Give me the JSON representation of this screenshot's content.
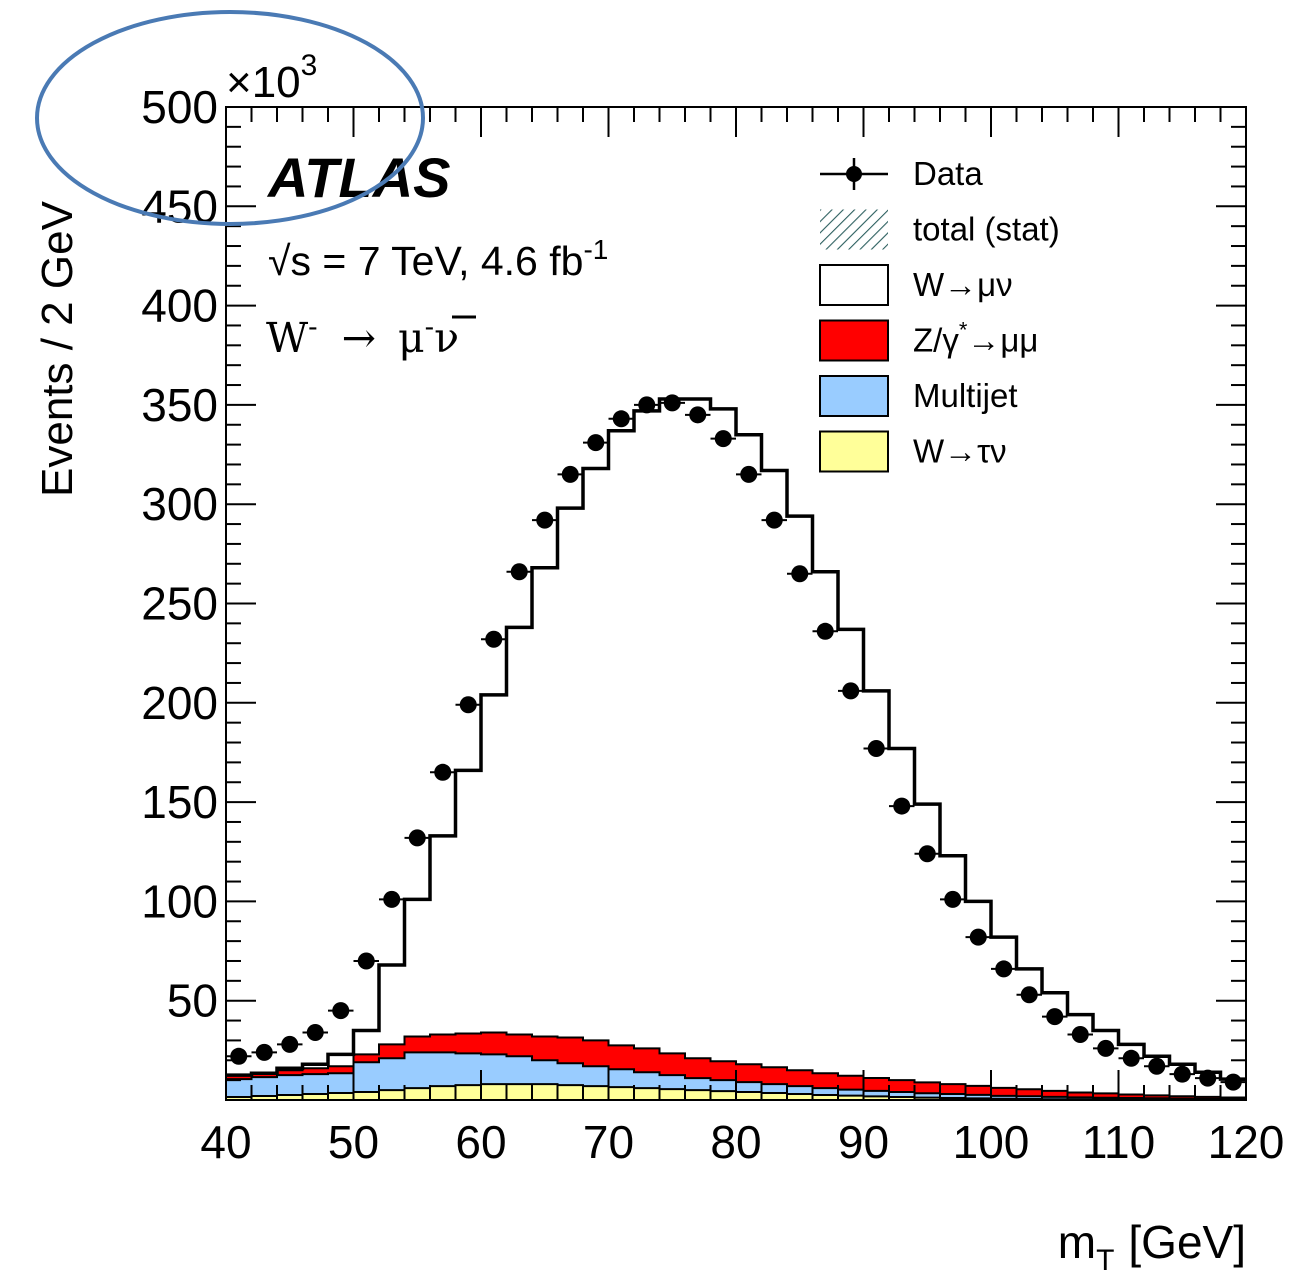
{
  "chart_data": {
    "type": "bar",
    "experiment": "ATLAS",
    "energy_label": "√s = 7 TeV, 4.6 fb",
    "energy_sup": "-1",
    "channel": {
      "boson": "W",
      "boson_charge": "-",
      "arrow": "→",
      "lepton": "μ",
      "lepton_charge": "-",
      "neutrino": "ν"
    },
    "xlabel": {
      "main": "m",
      "sub": "T",
      "unit": "[GeV]"
    },
    "ylabel": "Events / 2 GeV",
    "y_multiplier": {
      "base": "×10",
      "exp": "3"
    },
    "xlim": [
      40,
      120
    ],
    "ylim": [
      0,
      500
    ],
    "x_ticks": [
      40,
      50,
      60,
      70,
      80,
      90,
      100,
      110,
      120
    ],
    "y_ticks": [
      50,
      100,
      150,
      200,
      250,
      300,
      350,
      400,
      450,
      500
    ],
    "bin_width": 2,
    "bin_edges_start": 40,
    "legend_position": "top-right",
    "legend": [
      {
        "label_parts": [
          "Data"
        ],
        "kind": "marker"
      },
      {
        "label_parts": [
          "total (stat)"
        ],
        "kind": "hatch"
      },
      {
        "label_parts": [
          "W→μν"
        ],
        "kind": "box",
        "color": "#ffffff"
      },
      {
        "label_parts": [
          "Z/γ",
          "*",
          "→μμ"
        ],
        "kind": "box",
        "color": "#ff0000"
      },
      {
        "label_parts": [
          "Multijet"
        ],
        "kind": "box",
        "color": "#99ccff"
      },
      {
        "label_parts": [
          "W→τν"
        ],
        "kind": "box",
        "color": "#ffff99"
      }
    ],
    "series": [
      {
        "name": "W→τν",
        "color": "#ffff99",
        "values": [
          1.5,
          2,
          2.5,
          3,
          3.5,
          4,
          5,
          6,
          7,
          7.5,
          8,
          8,
          8,
          7.5,
          7,
          6.5,
          6,
          5.5,
          5,
          4.5,
          4,
          3.5,
          3,
          2.5,
          2.2,
          1.8,
          1.5,
          1.2,
          1,
          0.8,
          0.6,
          0.5,
          0.4,
          0.3,
          0.25,
          0.2,
          0.15,
          0.1,
          0.08,
          0.05
        ]
      },
      {
        "name": "Multijet",
        "color": "#99ccff",
        "values": [
          9,
          9.5,
          10,
          10,
          10,
          15,
          16,
          18,
          17,
          16,
          15,
          14,
          12,
          11,
          10,
          9,
          8,
          7,
          6,
          5.5,
          5,
          4.5,
          4,
          3.5,
          3,
          2.8,
          2.5,
          2.2,
          2,
          1.8,
          1.5,
          1.4,
          1.2,
          1,
          0.9,
          0.8,
          0.7,
          0.6,
          0.5,
          0.4
        ]
      },
      {
        "name": "Z/γ*→μμ",
        "color": "#ff0000",
        "values": [
          2,
          2,
          2.5,
          3,
          3.5,
          4,
          7,
          8,
          9,
          10,
          11,
          11,
          12,
          13,
          13,
          12,
          12,
          11,
          10,
          9.5,
          9,
          8.5,
          8,
          7.5,
          7,
          6.5,
          6,
          5.5,
          5,
          4.5,
          4,
          3.5,
          3,
          2.5,
          2.2,
          1.8,
          1.5,
          1.2,
          1,
          0.8
        ]
      },
      {
        "name": "W→μν",
        "total": true,
        "values": [
          12.5,
          13.5,
          16,
          18,
          23,
          35,
          68,
          101,
          133,
          166,
          204,
          238,
          268,
          298,
          318,
          337,
          347,
          353,
          353,
          348,
          335,
          317,
          294,
          266,
          237,
          206,
          177,
          149,
          123,
          100,
          82,
          66,
          54,
          43,
          35,
          28,
          22,
          18,
          14,
          10.5
        ]
      }
    ],
    "data_points": {
      "name": "Data",
      "x": [
        41,
        43,
        45,
        47,
        49,
        51,
        53,
        55,
        57,
        59,
        61,
        63,
        65,
        67,
        69,
        71,
        73,
        75,
        77,
        79,
        81,
        83,
        85,
        87,
        89,
        91,
        93,
        95,
        97,
        99,
        101,
        103,
        105,
        107,
        109,
        111,
        113,
        115,
        117,
        119
      ],
      "y": [
        22,
        24,
        28,
        34,
        45,
        70,
        101,
        132,
        165,
        199,
        232,
        266,
        292,
        315,
        331,
        343,
        350,
        351,
        345,
        333,
        315,
        292,
        265,
        236,
        206,
        177,
        148,
        124,
        101,
        82,
        66,
        53,
        42,
        33,
        26,
        21,
        17,
        13,
        11,
        9
      ]
    },
    "annotation": {
      "shape": "ellipse",
      "color": "#4a7ab4",
      "target": "y-axis multiplier"
    }
  }
}
